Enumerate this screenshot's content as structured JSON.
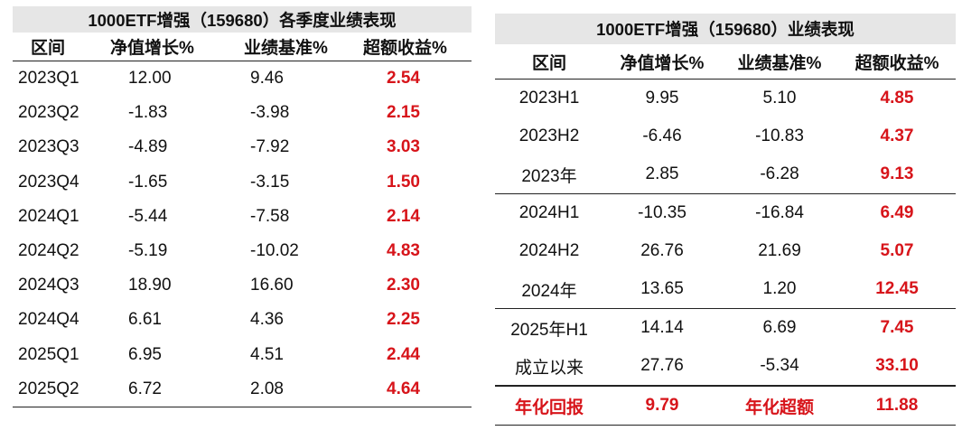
{
  "quarterly": {
    "title": "1000ETF增强（159680）各季度业绩表现",
    "headers": [
      "区间",
      "净值增长%",
      "业绩基准%",
      "超额收益%"
    ],
    "rows": [
      [
        "2023Q1",
        "12.00",
        "9.46",
        "2.54"
      ],
      [
        "2023Q2",
        "-1.83",
        "-3.98",
        "2.15"
      ],
      [
        "2023Q3",
        "-4.89",
        "-7.92",
        "3.03"
      ],
      [
        "2023Q4",
        "-1.65",
        "-3.15",
        "1.50"
      ],
      [
        "2024Q1",
        "-5.44",
        "-7.58",
        "2.14"
      ],
      [
        "2024Q2",
        "-5.19",
        "-10.02",
        "4.83"
      ],
      [
        "2024Q3",
        "18.90",
        "16.60",
        "2.30"
      ],
      [
        "2024Q4",
        "6.61",
        "4.36",
        "2.25"
      ],
      [
        "2025Q1",
        "6.95",
        "4.51",
        "2.44"
      ],
      [
        "2025Q2",
        "6.72",
        "2.08",
        "4.64"
      ]
    ]
  },
  "performance": {
    "title": "1000ETF增强（159680）业绩表现",
    "headers": [
      "区间",
      "净值增长%",
      "业绩基准%",
      "超额收益%"
    ],
    "rows": [
      [
        "2023H1",
        "9.95",
        "5.10",
        "4.85"
      ],
      [
        "2023H2",
        "-6.46",
        "-10.83",
        "4.37"
      ],
      [
        "2023年",
        "2.85",
        "-6.28",
        "9.13"
      ],
      [
        "2024H1",
        "-10.35",
        "-16.84",
        "6.49"
      ],
      [
        "2024H2",
        "26.76",
        "21.69",
        "5.07"
      ],
      [
        "2024年",
        "13.65",
        "1.20",
        "12.45"
      ],
      [
        "2025年H1",
        "14.14",
        "6.69",
        "7.45"
      ],
      [
        "成立以来",
        "27.76",
        "-5.34",
        "33.10"
      ]
    ],
    "footer": [
      "年化回报",
      "9.79",
      "年化超额",
      "11.88"
    ]
  },
  "colors": {
    "excess": "#d7141a",
    "title_bg": "#e6e6e6"
  }
}
